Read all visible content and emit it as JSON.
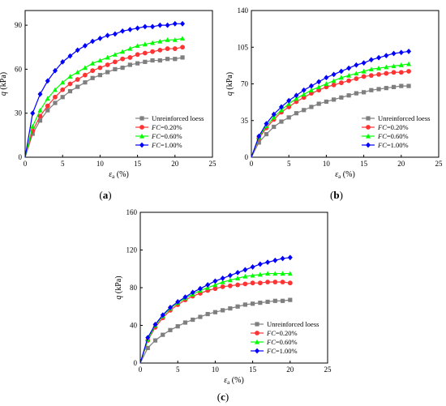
{
  "chart_data": [
    {
      "type": "line",
      "panel_label": "(a)",
      "panel_label_parts": {
        "open": "(",
        "letter": "a",
        "close": ")"
      },
      "xlabel": {
        "symbol": "ε",
        "subscript": "a",
        "unit": " (%)"
      },
      "ylabel": {
        "symbol": "q",
        "unit": " (kPa)"
      },
      "xlim": [
        0,
        25
      ],
      "ylim": [
        0,
        100
      ],
      "xticks": [
        "0",
        "5",
        "10",
        "15",
        "20",
        "25"
      ],
      "yticks": [
        "0",
        "30",
        "60",
        "90"
      ],
      "ytick_values": [
        0,
        30,
        60,
        90
      ],
      "legend_position": "lower-right",
      "series": [
        {
          "name": "Unreinforced loess",
          "legend_parts": {
            "italic": "",
            "rest": "Unreinforced loess"
          },
          "color": "#7f7f7f",
          "marker": "square",
          "x": [
            0,
            1,
            2,
            3,
            4,
            5,
            6,
            7,
            8,
            9,
            10,
            11,
            12,
            13,
            14,
            15,
            16,
            17,
            18,
            19,
            20,
            21
          ],
          "y": [
            0,
            16,
            25,
            32,
            37,
            41,
            45,
            48,
            51,
            54,
            56,
            58,
            60,
            61,
            63,
            64,
            65,
            66,
            66,
            67,
            67,
            68
          ]
        },
        {
          "name": "FC=0.20%",
          "legend_parts": {
            "italic": "FC",
            "rest": "=0.20%"
          },
          "color": "#ff3333",
          "marker": "circle",
          "x": [
            0,
            1,
            2,
            3,
            4,
            5,
            6,
            7,
            8,
            9,
            10,
            11,
            12,
            13,
            14,
            15,
            16,
            17,
            18,
            19,
            20,
            21
          ],
          "y": [
            0,
            18,
            28,
            35,
            41,
            46,
            50,
            53,
            56,
            59,
            61,
            63,
            65,
            67,
            68,
            70,
            71,
            72,
            73,
            74,
            74,
            75
          ]
        },
        {
          "name": "FC=0.60%",
          "legend_parts": {
            "italic": "FC",
            "rest": "=0.60%"
          },
          "color": "#00ff00",
          "marker": "triangle",
          "x": [
            0,
            1,
            2,
            3,
            4,
            5,
            6,
            7,
            8,
            9,
            10,
            11,
            12,
            13,
            14,
            15,
            16,
            17,
            18,
            19,
            20,
            21
          ],
          "y": [
            0,
            21,
            32,
            40,
            46,
            51,
            55,
            58,
            61,
            64,
            66,
            68,
            70,
            72,
            74,
            76,
            77,
            78,
            79,
            80,
            80,
            81
          ]
        },
        {
          "name": "FC=1.00%",
          "legend_parts": {
            "italic": "FC",
            "rest": "=1.00%"
          },
          "color": "#0000ff",
          "marker": "diamond",
          "x": [
            0,
            1,
            2,
            3,
            4,
            5,
            6,
            7,
            8,
            9,
            10,
            11,
            12,
            13,
            14,
            15,
            16,
            17,
            18,
            19,
            20,
            21
          ],
          "y": [
            0,
            30,
            43,
            52,
            59,
            65,
            69,
            73,
            76,
            79,
            81,
            83,
            84,
            86,
            87,
            88,
            89,
            89,
            90,
            90,
            91,
            91
          ]
        }
      ]
    },
    {
      "type": "line",
      "panel_label": "(b)",
      "panel_label_parts": {
        "open": "(",
        "letter": "b",
        "close": ")"
      },
      "xlabel": {
        "symbol": "ε",
        "subscript": "a",
        "unit": " (%)"
      },
      "ylabel": {
        "symbol": "q",
        "unit": " (kPa)"
      },
      "xlim": [
        0,
        25
      ],
      "ylim": [
        0,
        140
      ],
      "xticks": [
        "0",
        "5",
        "10",
        "15",
        "20",
        "25"
      ],
      "yticks": [
        "0",
        "35",
        "70",
        "105",
        "140"
      ],
      "ytick_values": [
        0,
        35,
        70,
        105,
        140
      ],
      "legend_position": "lower-right",
      "series": [
        {
          "name": "Unreinforced loess",
          "legend_parts": {
            "italic": "",
            "rest": "Unreinforced loess"
          },
          "color": "#7f7f7f",
          "marker": "square",
          "x": [
            0,
            1,
            2,
            3,
            4,
            5,
            6,
            7,
            8,
            9,
            10,
            11,
            12,
            13,
            14,
            15,
            16,
            17,
            18,
            19,
            20,
            21
          ],
          "y": [
            0,
            14,
            22,
            29,
            34,
            38,
            42,
            45,
            48,
            51,
            53,
            55,
            57,
            59,
            61,
            62,
            64,
            65,
            66,
            67,
            68,
            68
          ]
        },
        {
          "name": "FC=0.20%",
          "legend_parts": {
            "italic": "FC",
            "rest": "=0.20%"
          },
          "color": "#ff3333",
          "marker": "circle",
          "x": [
            0,
            1,
            2,
            3,
            4,
            5,
            6,
            7,
            8,
            9,
            10,
            11,
            12,
            13,
            14,
            15,
            16,
            17,
            18,
            19,
            20,
            21
          ],
          "y": [
            0,
            18,
            28,
            36,
            43,
            48,
            53,
            57,
            61,
            64,
            67,
            69,
            71,
            73,
            75,
            77,
            78,
            79,
            80,
            81,
            81,
            82
          ]
        },
        {
          "name": "FC=0.60%",
          "legend_parts": {
            "italic": "FC",
            "rest": "=0.60%"
          },
          "color": "#00ff00",
          "marker": "triangle",
          "x": [
            0,
            1,
            2,
            3,
            4,
            5,
            6,
            7,
            8,
            9,
            10,
            11,
            12,
            13,
            14,
            15,
            16,
            17,
            18,
            19,
            20,
            21
          ],
          "y": [
            0,
            19,
            30,
            38,
            45,
            51,
            56,
            60,
            64,
            67,
            70,
            73,
            76,
            78,
            80,
            82,
            84,
            85,
            86,
            87,
            88,
            89
          ]
        },
        {
          "name": "FC=1.00%",
          "legend_parts": {
            "italic": "FC",
            "rest": "=1.00%"
          },
          "color": "#0000ff",
          "marker": "diamond",
          "x": [
            0,
            1,
            2,
            3,
            4,
            5,
            6,
            7,
            8,
            9,
            10,
            11,
            12,
            13,
            14,
            15,
            16,
            17,
            18,
            19,
            20,
            21
          ],
          "y": [
            0,
            20,
            32,
            41,
            48,
            54,
            59,
            64,
            68,
            72,
            76,
            79,
            82,
            85,
            88,
            90,
            93,
            95,
            97,
            99,
            100,
            101
          ]
        }
      ]
    },
    {
      "type": "line",
      "panel_label": "(c)",
      "panel_label_parts": {
        "open": "(",
        "letter": "c",
        "close": ")"
      },
      "xlabel": {
        "symbol": "ε",
        "subscript": "a",
        "unit": " (%)"
      },
      "ylabel": {
        "symbol": "q",
        "unit": " (kPa)"
      },
      "xlim": [
        0,
        25
      ],
      "ylim": [
        0,
        160
      ],
      "xticks": [
        "0",
        "5",
        "10",
        "15",
        "20",
        "25"
      ],
      "yticks": [
        "0",
        "40",
        "80",
        "120",
        "160"
      ],
      "ytick_values": [
        0,
        40,
        80,
        120,
        160
      ],
      "legend_position": "lower-right",
      "series": [
        {
          "name": "Unreinforced loess",
          "legend_parts": {
            "italic": "",
            "rest": "Unreinforced loess"
          },
          "color": "#7f7f7f",
          "marker": "square",
          "x": [
            0,
            1,
            2,
            3,
            4,
            5,
            6,
            7,
            8,
            9,
            10,
            11,
            12,
            13,
            14,
            15,
            16,
            17,
            18,
            19,
            20
          ],
          "y": [
            0,
            16,
            24,
            30,
            35,
            39,
            43,
            46,
            49,
            52,
            54,
            56,
            58,
            60,
            62,
            63,
            64,
            65,
            66,
            66,
            67
          ]
        },
        {
          "name": "FC=0.20%",
          "legend_parts": {
            "italic": "FC",
            "rest": "=0.20%"
          },
          "color": "#ff3333",
          "marker": "circle",
          "x": [
            0,
            1,
            2,
            3,
            4,
            5,
            6,
            7,
            8,
            9,
            10,
            11,
            12,
            13,
            14,
            15,
            16,
            17,
            18,
            19,
            20
          ],
          "y": [
            0,
            24,
            38,
            48,
            56,
            62,
            67,
            71,
            74,
            77,
            79,
            81,
            82,
            83,
            84,
            85,
            85,
            86,
            86,
            86,
            85
          ]
        },
        {
          "name": "FC=0.60%",
          "legend_parts": {
            "italic": "FC",
            "rest": "=0.60%"
          },
          "color": "#00ff00",
          "marker": "triangle",
          "x": [
            0,
            1,
            2,
            3,
            4,
            5,
            6,
            7,
            8,
            9,
            10,
            11,
            12,
            13,
            14,
            15,
            16,
            17,
            18,
            19,
            20
          ],
          "y": [
            0,
            25,
            40,
            50,
            58,
            64,
            69,
            73,
            77,
            80,
            83,
            86,
            88,
            90,
            92,
            93,
            94,
            95,
            95,
            95,
            95
          ]
        },
        {
          "name": "FC=1.00%",
          "legend_parts": {
            "italic": "FC",
            "rest": "=1.00%"
          },
          "color": "#0000ff",
          "marker": "diamond",
          "x": [
            0,
            1,
            2,
            3,
            4,
            5,
            6,
            7,
            8,
            9,
            10,
            11,
            12,
            13,
            14,
            15,
            16,
            17,
            18,
            19,
            20
          ],
          "y": [
            0,
            27,
            41,
            51,
            59,
            65,
            70,
            75,
            79,
            83,
            87,
            90,
            93,
            96,
            99,
            102,
            105,
            107,
            109,
            111,
            112
          ]
        }
      ]
    }
  ]
}
